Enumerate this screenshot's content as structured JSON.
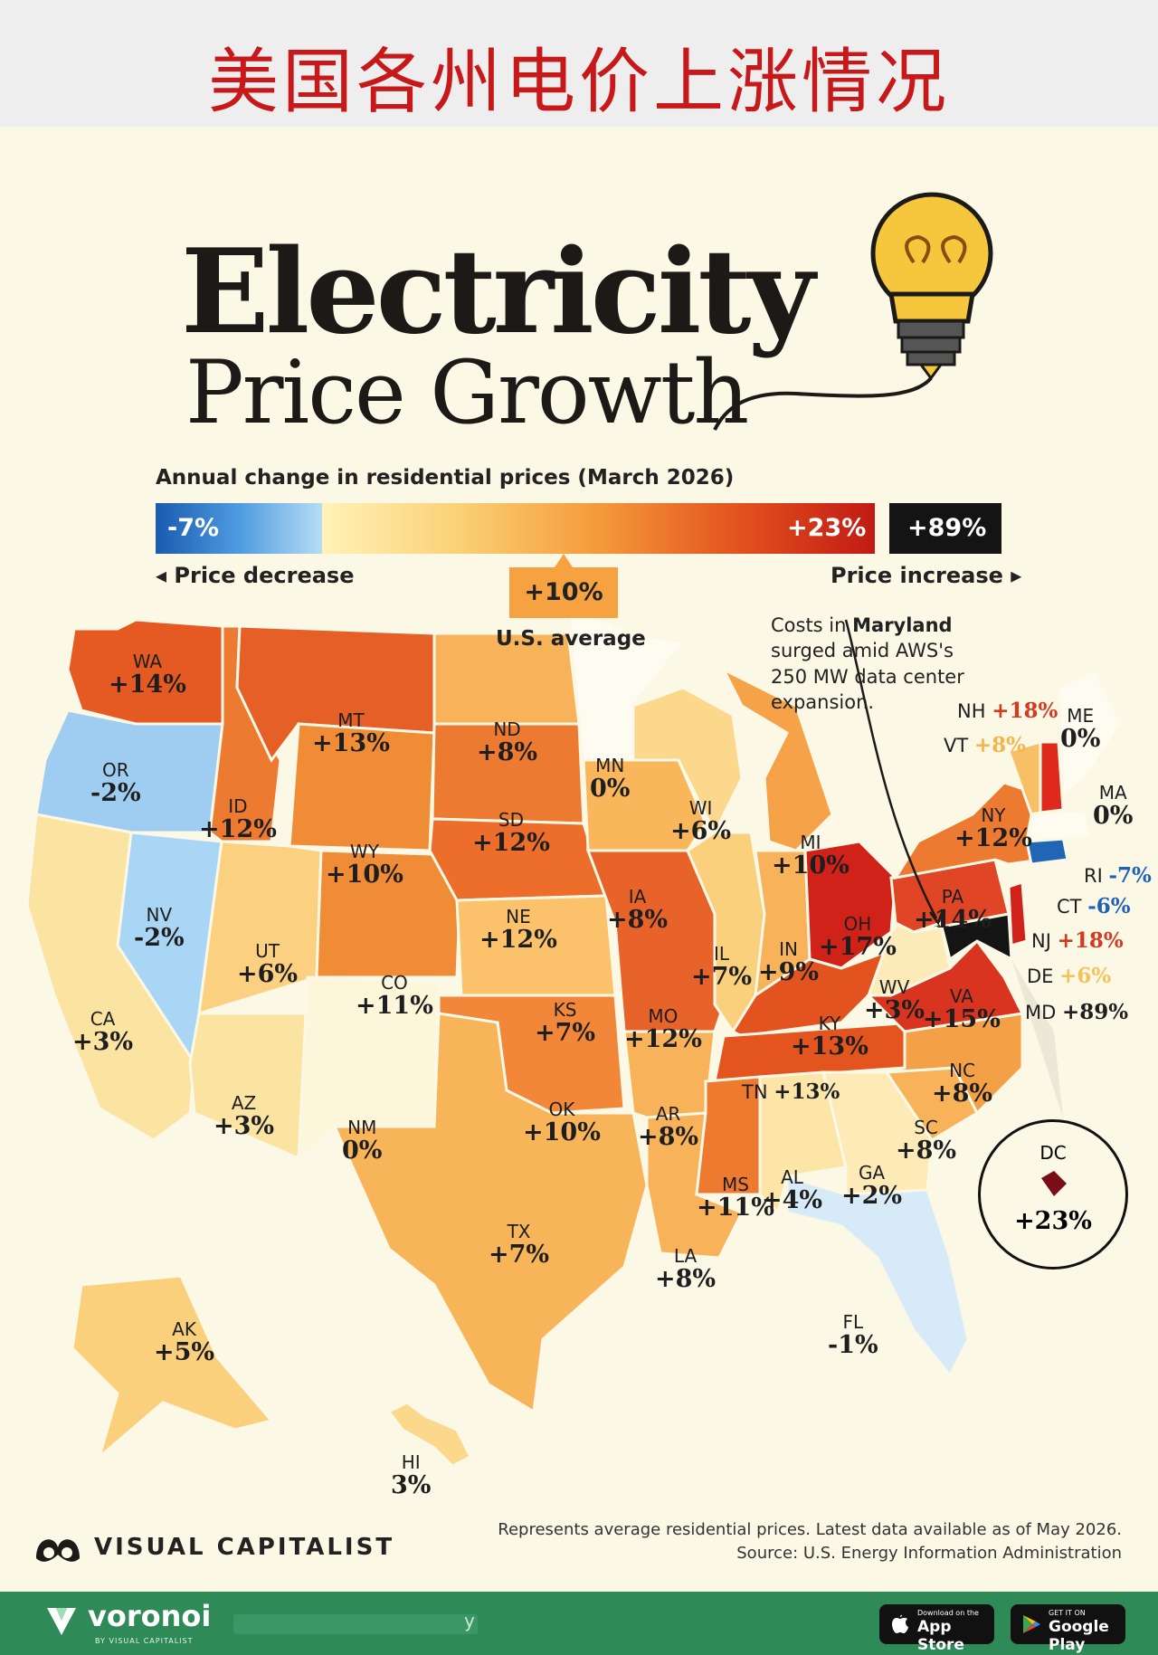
{
  "header": {
    "title_cn": "美国各州电价上涨情况"
  },
  "poster": {
    "title_line1": "Electricity",
    "title_line2": "Price Growth",
    "subtitle": "Annual change in residential prices (March 2026)"
  },
  "legend": {
    "min_label": "-7%",
    "max_label": "+23%",
    "outlier_label": "+89%",
    "decrease_label": "Price decrease",
    "increase_label": "Price increase",
    "average_value": "+10%",
    "average_label": "U.S. average",
    "colors": {
      "decrease": "#3d88d6",
      "low": "#fff3b8",
      "mid": "#f49a3a",
      "high": "#c11a14",
      "outlier": "#141414"
    }
  },
  "annotation": {
    "prefix": "Costs in ",
    "bold": "Maryland",
    "rest": "surged amid AWS's 250 MW data center expansion."
  },
  "states": [
    {
      "abbr": "WA",
      "change": "+14%"
    },
    {
      "abbr": "OR",
      "change": "-2%"
    },
    {
      "abbr": "CA",
      "change": "+3%"
    },
    {
      "abbr": "NV",
      "change": "-2%"
    },
    {
      "abbr": "ID",
      "change": "+12%"
    },
    {
      "abbr": "MT",
      "change": "+13%"
    },
    {
      "abbr": "WY",
      "change": "+10%"
    },
    {
      "abbr": "UT",
      "change": "+6%"
    },
    {
      "abbr": "AZ",
      "change": "+3%"
    },
    {
      "abbr": "CO",
      "change": "+11%"
    },
    {
      "abbr": "NM",
      "change": "0%"
    },
    {
      "abbr": "ND",
      "change": "+8%"
    },
    {
      "abbr": "SD",
      "change": "+12%"
    },
    {
      "abbr": "NE",
      "change": "+12%"
    },
    {
      "abbr": "KS",
      "change": "+7%"
    },
    {
      "abbr": "OK",
      "change": "+10%"
    },
    {
      "abbr": "TX",
      "change": "+7%"
    },
    {
      "abbr": "MN",
      "change": "0%"
    },
    {
      "abbr": "IA",
      "change": "+8%"
    },
    {
      "abbr": "MO",
      "change": "+12%"
    },
    {
      "abbr": "AR",
      "change": "+8%"
    },
    {
      "abbr": "LA",
      "change": "+8%"
    },
    {
      "abbr": "WI",
      "change": "+6%"
    },
    {
      "abbr": "IL",
      "change": "+7%"
    },
    {
      "abbr": "MI",
      "change": "+10%"
    },
    {
      "abbr": "IN",
      "change": "+9%"
    },
    {
      "abbr": "OH",
      "change": "+17%"
    },
    {
      "abbr": "KY",
      "change": "+13%"
    },
    {
      "abbr": "TN",
      "change": "+13%"
    },
    {
      "abbr": "MS",
      "change": "+11%"
    },
    {
      "abbr": "AL",
      "change": "+4%"
    },
    {
      "abbr": "GA",
      "change": "+2%"
    },
    {
      "abbr": "FL",
      "change": "-1%"
    },
    {
      "abbr": "SC",
      "change": "+8%"
    },
    {
      "abbr": "NC",
      "change": "+8%"
    },
    {
      "abbr": "VA",
      "change": "+15%"
    },
    {
      "abbr": "WV",
      "change": "+3%"
    },
    {
      "abbr": "PA",
      "change": "+14%"
    },
    {
      "abbr": "NY",
      "change": "+12%"
    },
    {
      "abbr": "AK",
      "change": "+5%"
    },
    {
      "abbr": "HI",
      "change": "3%"
    }
  ],
  "northeast_callouts": [
    {
      "abbr": "NH",
      "change": "+18%",
      "color": "#d33a22"
    },
    {
      "abbr": "VT",
      "change": "+8%",
      "color": "#f5b54d"
    },
    {
      "abbr": "ME",
      "change": "0%",
      "color": "#1e1e1e"
    },
    {
      "abbr": "MA",
      "change": "0%",
      "color": "#1e1e1e"
    },
    {
      "abbr": "RI",
      "change": "-7%",
      "color": "#1f62b5"
    },
    {
      "abbr": "CT",
      "change": "-6%",
      "color": "#1f62b5"
    },
    {
      "abbr": "NJ",
      "change": "+18%",
      "color": "#d33a22"
    },
    {
      "abbr": "DE",
      "change": "+6%",
      "color": "#f2c35a"
    },
    {
      "abbr": "MD",
      "change": "+89%",
      "color": "#1e1e1e"
    }
  ],
  "dc": {
    "abbr": "DC",
    "change": "+23%"
  },
  "branding": {
    "name": "VISUAL CAPITALIST"
  },
  "source": {
    "note": "Represents average residential prices. Latest data available as of May 2026.",
    "credit": "Source: U.S. Energy Information Administration"
  },
  "footer": {
    "brand": "voronoi",
    "brand_sub": "BY VISUAL CAPITALIST",
    "blurred_tail": "y",
    "app_store_small": "Download on the",
    "app_store": "App Store",
    "google_small": "GET IT ON",
    "google": "Google Play"
  }
}
